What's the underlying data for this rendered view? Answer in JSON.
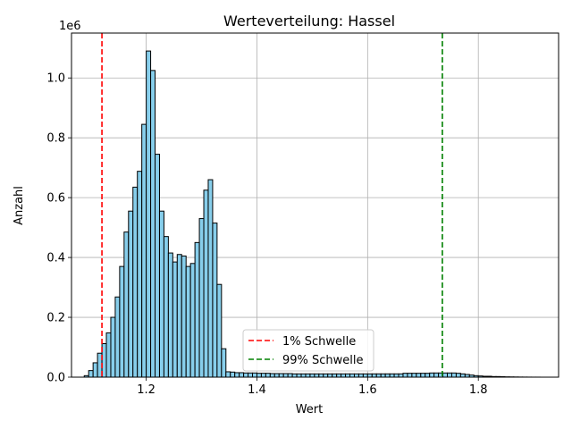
{
  "chart_data": {
    "type": "bar",
    "title": "Werteverteilung: Hassel",
    "xlabel": "Wert",
    "ylabel": "Anzahl",
    "y_offset_text": "1e6",
    "xlim": [
      1.065,
      1.945
    ],
    "ylim": [
      0,
      1150000
    ],
    "xticks": [
      1.2,
      1.4,
      1.6,
      1.8
    ],
    "xtick_labels": [
      "1.2",
      "1.4",
      "1.6",
      "1.8"
    ],
    "yticks": [
      0,
      200000,
      400000,
      600000,
      800000,
      1000000
    ],
    "ytick_labels": [
      "0.0",
      "0.2",
      "0.4",
      "0.6",
      "0.8",
      "1.0"
    ],
    "grid": true,
    "bar_color": "#87ceeb",
    "bar_edge_color": "#000000",
    "bin_width": 0.008,
    "bins_start": 1.088,
    "counts": [
      5000,
      22000,
      48000,
      80000,
      112000,
      148000,
      200000,
      268000,
      370000,
      485000,
      555000,
      635000,
      688000,
      845000,
      1090000,
      1025000,
      745000,
      555000,
      470000,
      415000,
      385000,
      410000,
      405000,
      370000,
      380000,
      450000,
      530000,
      625000,
      660000,
      515000,
      310000,
      95000,
      18000,
      17000,
      15000,
      15000,
      14000,
      14000,
      14000,
      13000,
      13000,
      13000,
      12000,
      12000,
      12000,
      12000,
      12000,
      11000,
      11000,
      11000,
      11000,
      11000,
      11000,
      11000,
      11000,
      11000,
      11000,
      11000,
      11000,
      11000,
      11000,
      11000,
      11000,
      11000,
      11000,
      11000,
      11000,
      11000,
      11000,
      11000,
      11000,
      11000,
      13000,
      13000,
      13000,
      13000,
      13000,
      13000,
      14000,
      14000,
      14000,
      14000,
      14000,
      14000,
      13000,
      11000,
      9000,
      7000,
      5000,
      4000,
      3000,
      3000,
      2000,
      2000,
      1500,
      1000,
      800,
      600,
      400,
      300,
      200,
      100,
      100
    ],
    "series": [
      {
        "name": "1% Schwelle",
        "x": 1.12,
        "color": "#ff0000",
        "style": "dashed"
      },
      {
        "name": "99% Schwelle",
        "x": 1.735,
        "color": "#008000",
        "style": "dashed"
      }
    ],
    "legend_location": "lower center"
  }
}
